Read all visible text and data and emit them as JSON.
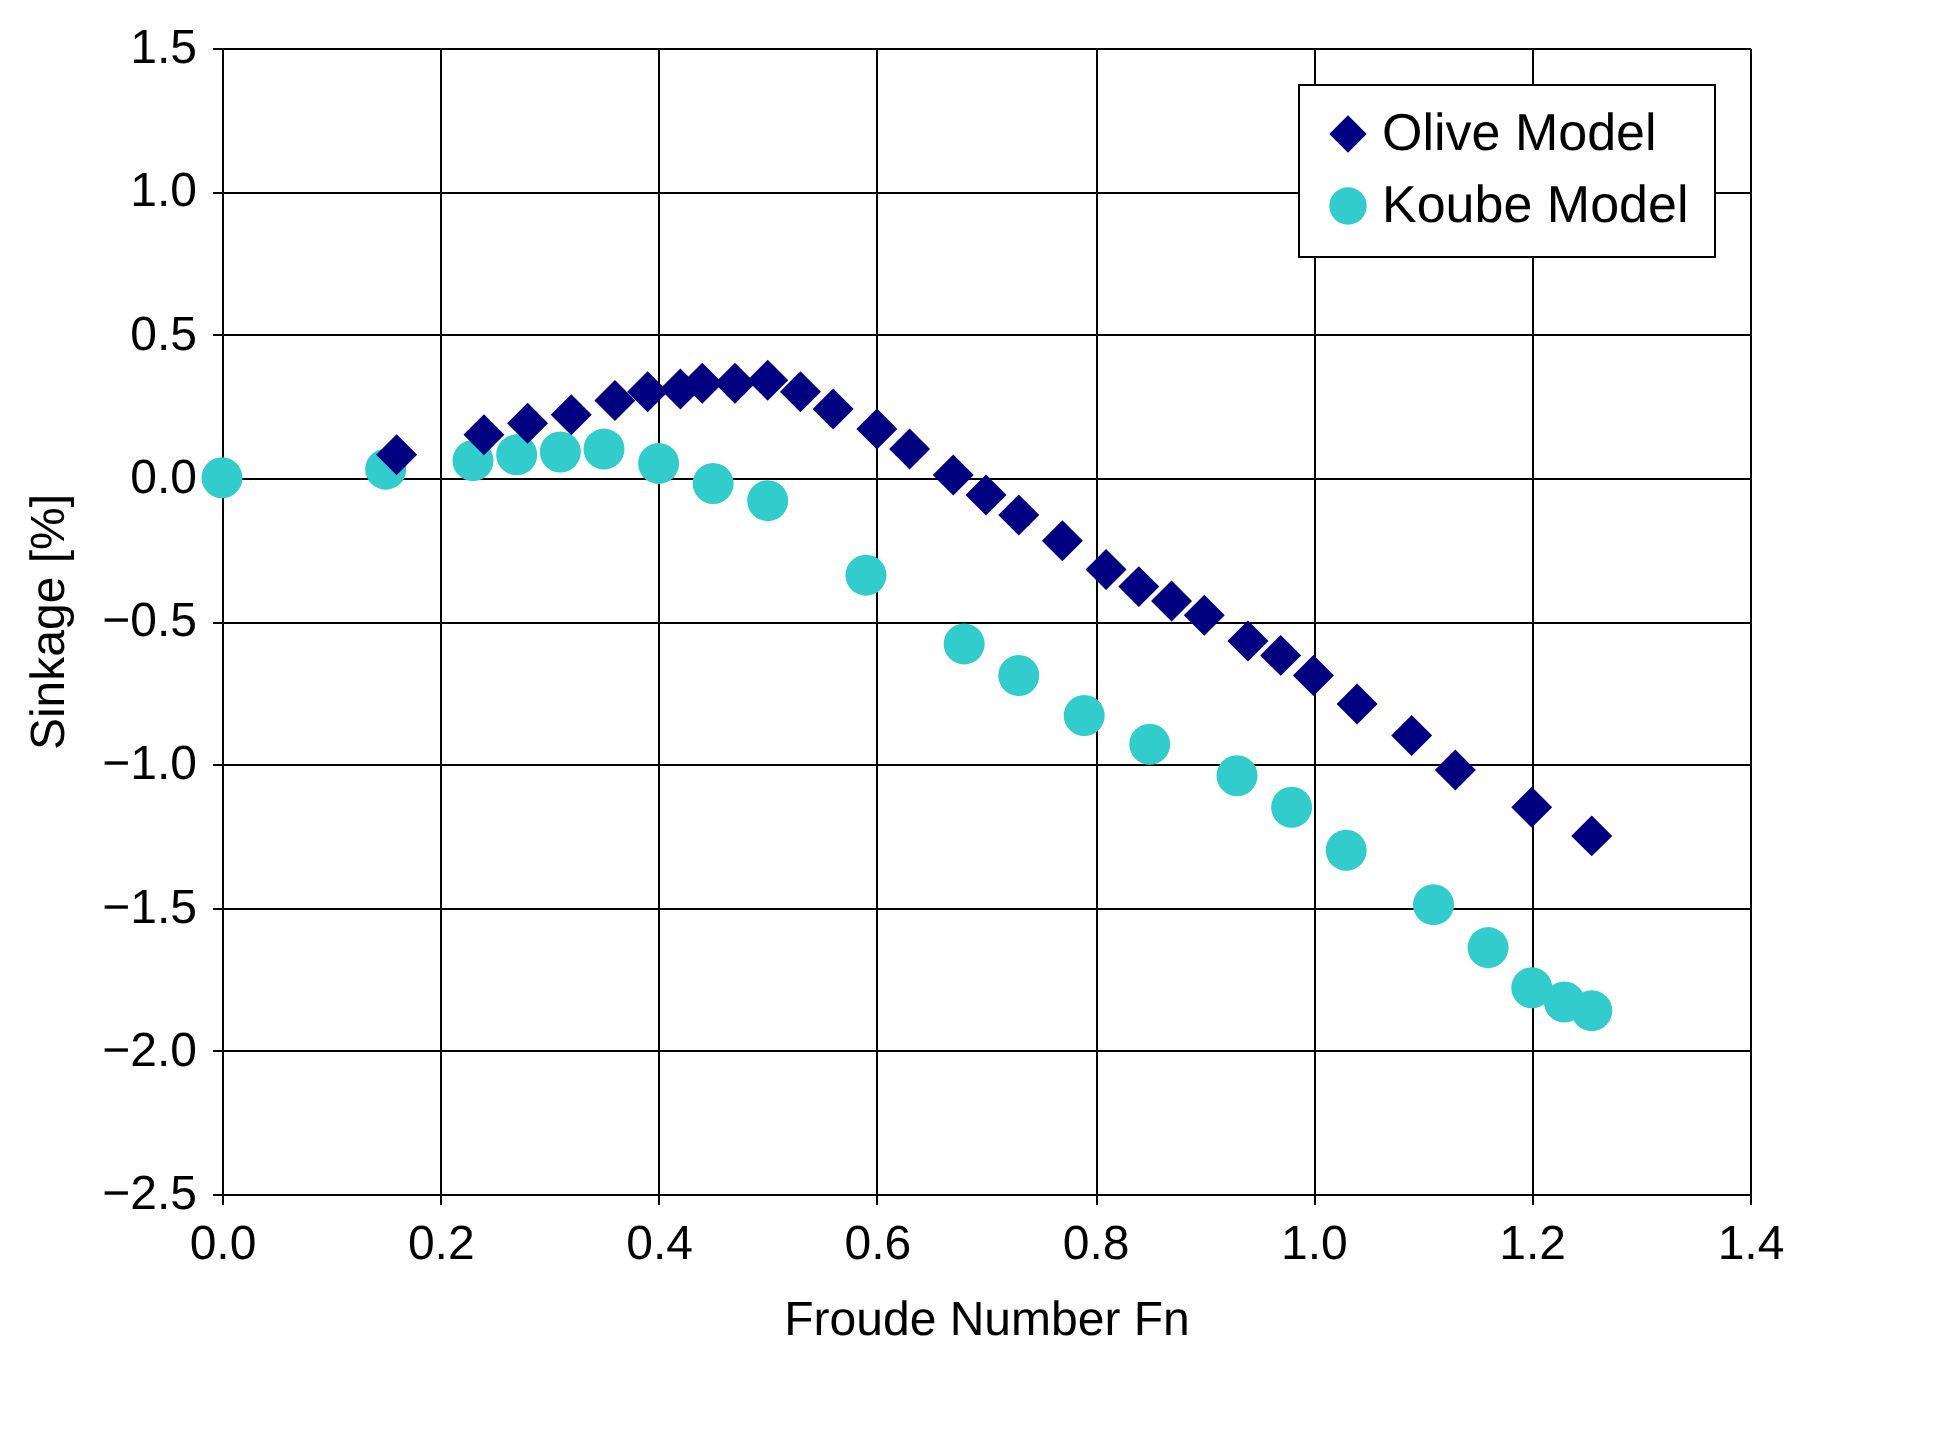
{
  "chart_data": {
    "type": "scatter",
    "xlabel": "Froude Number Fn",
    "ylabel": "Sinkage [%]",
    "xlim": [
      0,
      1.4
    ],
    "ylim": [
      -2.5,
      1.5
    ],
    "xticks": [
      {
        "value": 0,
        "label": "0.0"
      },
      0.2,
      0.4,
      0.6,
      0.8,
      {
        "value": 1,
        "label": "1.0"
      },
      1.2,
      1.4
    ],
    "yticks": [
      {
        "value": -2.5,
        "label": "−2.5"
      },
      {
        "value": -2,
        "label": "−2.0"
      },
      {
        "value": -1.5,
        "label": "−1.5"
      },
      {
        "value": -1,
        "label": "−1.0"
      },
      {
        "value": -0.5,
        "label": "−0.5"
      },
      {
        "value": 0,
        "label": "0.0"
      },
      0.5,
      {
        "value": 1,
        "label": "1.0"
      },
      1.5
    ],
    "grid": true,
    "legend": "top right",
    "series": [
      {
        "name": "Olive Model",
        "color": "#000080",
        "marker": "diamond",
        "x": [
          0.16,
          0.24,
          0.28,
          0.32,
          0.36,
          0.39,
          0.42,
          0.44,
          0.47,
          0.5,
          0.53,
          0.56,
          0.6,
          0.63,
          0.67,
          0.7,
          0.73,
          0.77,
          0.81,
          0.84,
          0.87,
          0.9,
          0.94,
          0.97,
          1.0,
          1.04,
          1.09,
          1.13,
          1.2,
          1.255
        ],
        "values": [
          0.08,
          0.15,
          0.19,
          0.22,
          0.27,
          0.3,
          0.31,
          0.33,
          0.33,
          0.34,
          0.3,
          0.24,
          0.17,
          0.1,
          0.01,
          -0.06,
          -0.13,
          -0.22,
          -0.32,
          -0.38,
          -0.43,
          -0.48,
          -0.57,
          -0.62,
          -0.69,
          -0.79,
          -0.9,
          -1.02,
          -1.15,
          -1.25
        ]
      },
      {
        "name": "Koube Model",
        "color": "#33cccc",
        "marker": "circle",
        "x": [
          0.0,
          0.15,
          0.23,
          0.27,
          0.31,
          0.35,
          0.4,
          0.45,
          0.5,
          0.59,
          0.68,
          0.73,
          0.79,
          0.85,
          0.93,
          0.98,
          1.03,
          1.11,
          1.16,
          1.2,
          1.23,
          1.255
        ],
        "values": [
          0.0,
          0.03,
          0.06,
          0.08,
          0.09,
          0.1,
          0.05,
          -0.02,
          -0.08,
          -0.34,
          -0.58,
          -0.69,
          -0.83,
          -0.93,
          -1.04,
          -1.15,
          -1.3,
          -1.49,
          -1.64,
          -1.78,
          -1.83,
          -1.86
        ]
      }
    ]
  }
}
